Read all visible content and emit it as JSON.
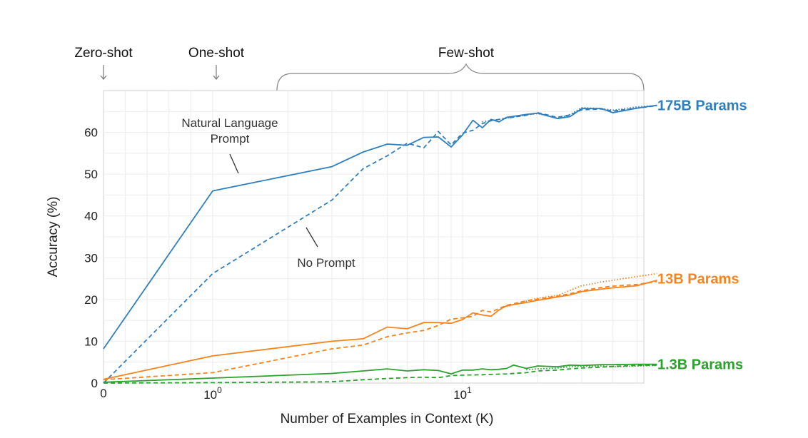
{
  "colors": {
    "s175": "#2f7fbd",
    "s13": "#f5831f",
    "s1_3": "#2ca02c",
    "grid": "#ececec",
    "frame": "#cfcfcf"
  },
  "header": {
    "zero": "Zero-shot",
    "one": "One-shot",
    "few": "Few-shot"
  },
  "labels": {
    "nat_line1": "Natural Language",
    "nat_line2": "Prompt",
    "noprompt": "No Prompt"
  },
  "chart_data": {
    "type": "line",
    "xlabel": "Number of Examples in Context  (K)",
    "ylabel": "Accuracy (%)",
    "xscale": "symlog",
    "xlim": [
      0,
      60
    ],
    "ylim": [
      0,
      70
    ],
    "yticks": [
      "0",
      "10",
      "20",
      "30",
      "40",
      "50",
      "60"
    ],
    "xticks": {
      "zero": "0",
      "one_base": "10",
      "one_exp": "0",
      "ten_base": "10",
      "ten_exp": "1"
    },
    "series": [
      {
        "name": "175B Params",
        "style": "solid",
        "color": "s175",
        "x": [
          0,
          1,
          3,
          4,
          5,
          6,
          7,
          8,
          9,
          10,
          11,
          12,
          13,
          14,
          15,
          18,
          20,
          24,
          27,
          30,
          36,
          40,
          50,
          60
        ],
        "y": [
          8.2,
          46,
          51.8,
          55.3,
          57.2,
          56.9,
          58.8,
          58.9,
          56.5,
          59.4,
          62.9,
          61.1,
          63.1,
          62.5,
          63.6,
          64.3,
          64.6,
          63.3,
          63.8,
          65.7,
          65.7,
          64.7,
          65.8,
          66.5
        ]
      },
      {
        "name": "175B Params",
        "style": "dashed",
        "color": "s175",
        "x": [
          0,
          1,
          3,
          4,
          5,
          6,
          7,
          8,
          9,
          10,
          11,
          12,
          13,
          15,
          18,
          20,
          24,
          27,
          30,
          36,
          40,
          50,
          60
        ],
        "y": [
          0,
          26.2,
          43.8,
          51.3,
          54.4,
          57.4,
          56.3,
          60.2,
          57,
          59.8,
          60.5,
          62.1,
          62.8,
          63.4,
          64.1,
          64.7,
          63.6,
          64.2,
          65.4,
          65.6,
          65.1,
          65.8,
          66.4
        ]
      },
      {
        "name": "175B Params",
        "style": "dotted",
        "color": "s175",
        "x": [
          12,
          15,
          18,
          20,
          24,
          27,
          30,
          36,
          40,
          50,
          60
        ],
        "y": [
          62.5,
          63.4,
          64.2,
          64.5,
          63.4,
          64.3,
          65.9,
          65.7,
          65.3,
          66.1,
          66.4
        ]
      },
      {
        "name": "13B Params",
        "style": "solid",
        "color": "s13",
        "x": [
          0,
          1,
          3,
          4,
          5,
          6,
          7,
          8,
          9,
          10,
          11,
          12,
          13,
          14,
          15,
          18,
          20,
          24,
          27,
          30,
          36,
          40,
          50,
          60
        ],
        "y": [
          0.9,
          6.5,
          10,
          10.6,
          13.4,
          13,
          14.5,
          14.5,
          14.3,
          15.2,
          16.8,
          16.3,
          16,
          17.5,
          18.5,
          19.3,
          19.8,
          20.6,
          21.1,
          21.9,
          22.5,
          22.8,
          23.3,
          24.6
        ]
      },
      {
        "name": "13B Params",
        "style": "dashed",
        "color": "s13",
        "x": [
          0,
          1,
          3,
          4,
          5,
          6,
          7,
          8,
          9,
          10,
          11,
          12,
          13,
          15,
          18,
          20,
          24,
          27,
          30,
          36,
          40,
          50,
          60
        ],
        "y": [
          0.8,
          2.5,
          8.2,
          9.1,
          11.1,
          12,
          12.6,
          13.8,
          15.3,
          15.6,
          16,
          17.4,
          17,
          18.6,
          19.7,
          20.1,
          20.8,
          21.4,
          22.1,
          22.9,
          23.2,
          23.6,
          24.3
        ]
      },
      {
        "name": "13B Params",
        "style": "dotted",
        "color": "s13",
        "x": [
          15,
          18,
          20,
          24,
          27,
          30,
          36,
          40,
          50,
          60
        ],
        "y": [
          18.3,
          19.6,
          20.3,
          21,
          22.2,
          23.3,
          24.2,
          24.6,
          25.5,
          26.2
        ]
      },
      {
        "name": "1.3B Params",
        "style": "solid",
        "color": "s1_3",
        "x": [
          0,
          1,
          3,
          4,
          5,
          6,
          7,
          8,
          9,
          10,
          11,
          12,
          13,
          14,
          15,
          16,
          18,
          20,
          24,
          27,
          30,
          36,
          40,
          50,
          60
        ],
        "y": [
          0.2,
          1.2,
          2.3,
          2.9,
          3.4,
          2.9,
          3.2,
          3,
          2.2,
          3.1,
          3.1,
          3.4,
          3.2,
          3.3,
          3.5,
          4.3,
          3.5,
          4.1,
          3.9,
          4.3,
          4.2,
          4.4,
          4.4,
          4.5,
          4.5
        ]
      },
      {
        "name": "1.3B Params",
        "style": "dashed",
        "color": "s1_3",
        "x": [
          0,
          1,
          3,
          4,
          5,
          6,
          7,
          8,
          9,
          10,
          12,
          15,
          18,
          20,
          24,
          27,
          30,
          36,
          40,
          50,
          60
        ],
        "y": [
          0,
          0.1,
          0.3,
          0.8,
          1.1,
          1.3,
          1.4,
          1.3,
          1.8,
          1.9,
          2,
          2.2,
          2.5,
          2.9,
          3.1,
          3.4,
          3.6,
          3.8,
          4,
          4.2,
          4.3
        ]
      },
      {
        "name": "1.3B Params",
        "style": "dotted",
        "color": "s1_3",
        "x": [
          18,
          20,
          24,
          27,
          30,
          36,
          40,
          50,
          60
        ],
        "y": [
          3.2,
          3.4,
          3.6,
          3.9,
          4,
          4.1,
          3.9,
          4.1,
          4.2
        ]
      }
    ],
    "series_labels": [
      {
        "text": "175B Params",
        "color": "s175",
        "y": 66.5
      },
      {
        "text": "13B Params",
        "color": "s13",
        "y": 25
      },
      {
        "text": "1.3B Params",
        "color": "s1_3",
        "y": 4.5
      }
    ]
  }
}
